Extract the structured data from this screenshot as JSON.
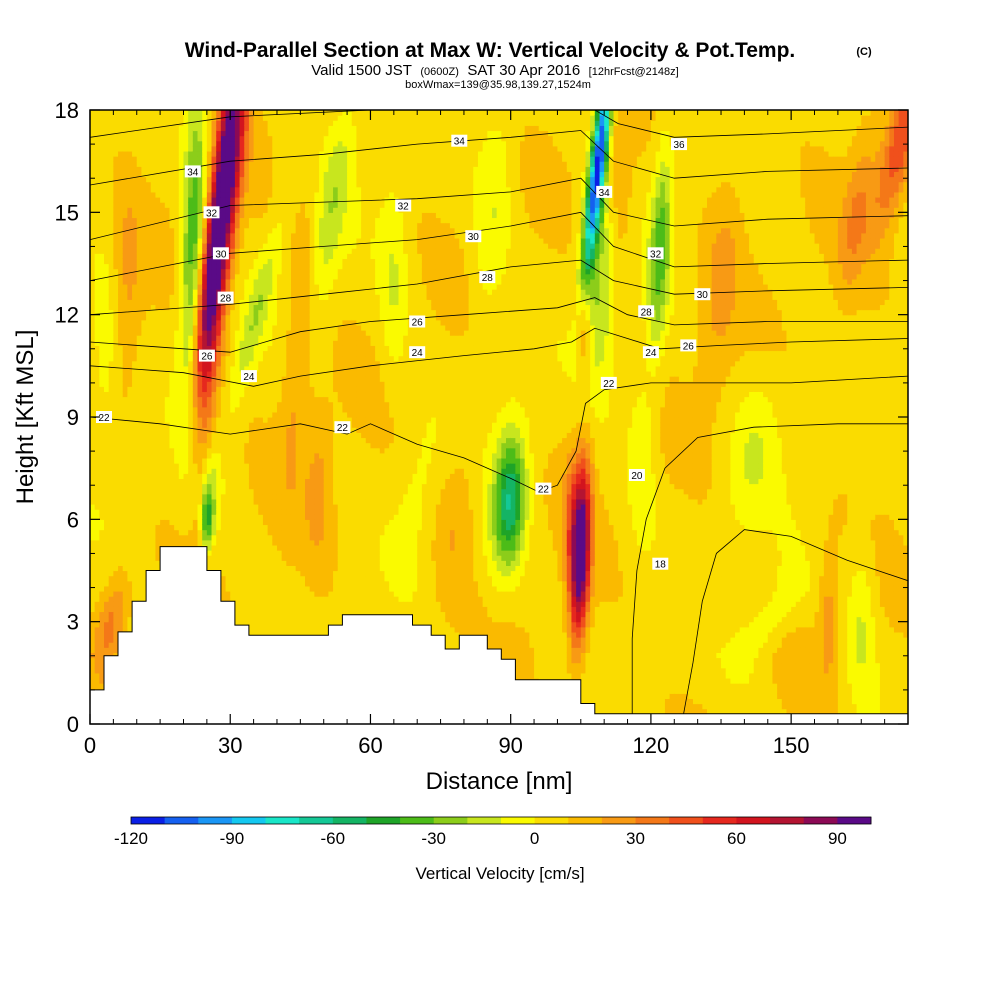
{
  "chart_data": {
    "type": "heatmap",
    "title": "Wind-Parallel Section at Max W: Vertical Velocity & Pot.Temp.",
    "title_mark": "(C)",
    "subtitle": {
      "part1": "Valid 1500 JST",
      "part2": "(0600Z)",
      "part3": "SAT 30 Apr 2016",
      "part4": "[12hrFcst@2148z]"
    },
    "subtitle2": "boxWmax=139@35.98,139.27,1524m",
    "xlabel": "Distance [nm]",
    "ylabel": "Height [Kft MSL]",
    "xlim": [
      0,
      175
    ],
    "ylim": [
      0,
      18
    ],
    "x_ticks": [
      0,
      30,
      60,
      90,
      120,
      150
    ],
    "y_ticks": [
      0,
      3,
      6,
      9,
      12,
      15,
      18
    ],
    "colorbar": {
      "label": "Vertical Velocity [cm/s]",
      "min": -120,
      "max": 100,
      "step": 10,
      "tick_values": [
        -120,
        -90,
        -60,
        -30,
        0,
        30,
        60,
        90
      ],
      "tick_labels": [
        "-120",
        "-90",
        "-60",
        "-30",
        "0",
        "30",
        "60",
        "90"
      ],
      "colors": [
        "#0a1fe6",
        "#1560f0",
        "#1a96f5",
        "#14c8f0",
        "#19e6c8",
        "#14c896",
        "#14b464",
        "#1ea428",
        "#4cbc18",
        "#8ccd1a",
        "#c8e61e",
        "#fafa00",
        "#fadc00",
        "#faba00",
        "#f89a14",
        "#f47818",
        "#f0501c",
        "#e6281e",
        "#d2141e",
        "#b41432",
        "#8c0a55",
        "#5a0a87"
      ]
    },
    "terrain_kft": [
      [
        0,
        1.0
      ],
      [
        3,
        1.0
      ],
      [
        3,
        2.0
      ],
      [
        6,
        2.0
      ],
      [
        6,
        2.7
      ],
      [
        9,
        2.7
      ],
      [
        9,
        3.6
      ],
      [
        12,
        3.6
      ],
      [
        12,
        4.5
      ],
      [
        15,
        4.5
      ],
      [
        15,
        5.2
      ],
      [
        25,
        5.2
      ],
      [
        25,
        4.5
      ],
      [
        28,
        4.5
      ],
      [
        28,
        3.6
      ],
      [
        31,
        3.6
      ],
      [
        31,
        2.9
      ],
      [
        34,
        2.9
      ],
      [
        34,
        2.6
      ],
      [
        51,
        2.6
      ],
      [
        51,
        2.9
      ],
      [
        54,
        2.9
      ],
      [
        54,
        3.2
      ],
      [
        69,
        3.2
      ],
      [
        69,
        2.9
      ],
      [
        73,
        2.9
      ],
      [
        73,
        2.6
      ],
      [
        76,
        2.6
      ],
      [
        76,
        2.2
      ],
      [
        79,
        2.2
      ],
      [
        79,
        2.6
      ],
      [
        85,
        2.6
      ],
      [
        85,
        2.2
      ],
      [
        88,
        2.2
      ],
      [
        88,
        1.9
      ],
      [
        91,
        1.9
      ],
      [
        91,
        1.3
      ],
      [
        105,
        1.3
      ],
      [
        105,
        0.6
      ],
      [
        108,
        0.6
      ],
      [
        108,
        0.3
      ],
      [
        175,
        0.3
      ]
    ],
    "features": [
      {
        "x": 29,
        "x0": 24,
        "x1": 31,
        "w": 3.0,
        "y": 14.5,
        "y0": 10,
        "y1": 18,
        "h": 5.5,
        "v": 95
      },
      {
        "x": 28,
        "x0": 25,
        "x1": 30,
        "w": 2.0,
        "y": 15.5,
        "y0": 12,
        "y1": 18,
        "h": 4.0,
        "v": 35
      },
      {
        "x": 22,
        "x0": 21,
        "x1": 23,
        "w": 2.5,
        "y": 14.0,
        "y0": 10,
        "y1": 18,
        "h": 5.0,
        "v": -45
      },
      {
        "x": 25,
        "x0": 25,
        "x1": 25,
        "w": 1.3,
        "y": 6.0,
        "y0": 5.5,
        "y1": 6.5,
        "h": 0.9,
        "v": -50
      },
      {
        "x": 26,
        "x0": 26,
        "x1": 26,
        "w": 2.0,
        "y": 7.0,
        "y0": 6.0,
        "y1": 8.0,
        "h": 1.5,
        "v": -25
      },
      {
        "x": 36,
        "x0": 30,
        "x1": 41,
        "w": 2.5,
        "y": 12,
        "y0": 9,
        "y1": 15,
        "h": 3.0,
        "v": -22
      },
      {
        "x": 52,
        "x0": 48,
        "x1": 55,
        "w": 3.5,
        "y": 15,
        "y0": 12,
        "y1": 18,
        "h": 3.5,
        "v": -22
      },
      {
        "x": 45,
        "x0": 43,
        "x1": 47,
        "w": 3.0,
        "y": 11,
        "y0": 8,
        "y1": 15,
        "h": 4.0,
        "v": 18
      },
      {
        "x": 49,
        "x0": 49,
        "x1": 49,
        "w": 3.0,
        "y": 7,
        "y0": 4,
        "y1": 9,
        "h": 2.5,
        "v": 15
      },
      {
        "x": 86,
        "x0": 84,
        "x1": 88,
        "w": 4.0,
        "y": 15,
        "y0": 11,
        "y1": 18,
        "h": 3.5,
        "v": -16
      },
      {
        "x": 90,
        "x0": 90,
        "x1": 90,
        "w": 3.0,
        "y": 6.5,
        "y0": 5.5,
        "y1": 7.5,
        "h": 1.8,
        "v": -40
      },
      {
        "x": 89,
        "x0": 87,
        "x1": 91,
        "w": 4.0,
        "y": 6.5,
        "y0": 4,
        "y1": 8.5,
        "h": 2.5,
        "v": -25
      },
      {
        "x": 78,
        "x0": 76,
        "x1": 80,
        "w": 4.0,
        "y": 6,
        "y0": 3.5,
        "y1": 8,
        "h": 2.5,
        "v": 12
      },
      {
        "x": 103,
        "x0": 103,
        "x1": 103,
        "w": 2.0,
        "y": 6,
        "y0": 2,
        "y1": 9.5,
        "h": 2.0,
        "v": 22
      },
      {
        "x": 107,
        "x0": 104,
        "x1": 106,
        "w": 2.0,
        "y": 5,
        "y0": 1,
        "y1": 9.5,
        "h": 2.5,
        "v": 100
      },
      {
        "x": 106,
        "x0": 106,
        "x1": 106,
        "w": 1.5,
        "y": 11.5,
        "y0": 10.5,
        "y1": 12.5,
        "h": 1.3,
        "v": 30
      },
      {
        "x": 109,
        "x0": 106,
        "x1": 110,
        "w": 1.7,
        "y": 16.5,
        "y0": 13,
        "y1": 18,
        "h": 3.2,
        "v": -120
      },
      {
        "x": 110,
        "x0": 109,
        "x1": 110,
        "w": 4.0,
        "y": 13,
        "y0": 11,
        "y1": 15,
        "h": 3.0,
        "v": -30
      },
      {
        "x": 113,
        "x0": 113,
        "x1": 113,
        "w": 3.0,
        "y": 15,
        "y0": 12,
        "y1": 18,
        "h": 3.0,
        "v": 20
      },
      {
        "x": 121,
        "x0": 121,
        "x1": 123,
        "w": 2.2,
        "y": 14,
        "y0": 11,
        "y1": 17,
        "h": 3.0,
        "v": -40
      },
      {
        "x": 118,
        "x0": 118,
        "x1": 118,
        "w": 3.0,
        "y": 8,
        "y0": 6,
        "y1": 10,
        "h": 2.5,
        "v": -18
      },
      {
        "x": 135,
        "x0": 133,
        "x1": 137,
        "w": 4.0,
        "y": 13,
        "y0": 10,
        "y1": 16,
        "h": 3.5,
        "v": 15
      },
      {
        "x": 142,
        "x0": 140,
        "x1": 144,
        "w": 5.0,
        "y": 8,
        "y0": 6,
        "y1": 10,
        "h": 2.5,
        "v": -14
      },
      {
        "x": 145,
        "x0": 140,
        "x1": 150,
        "w": 5.0,
        "y": 3,
        "y0": 2,
        "y1": 4,
        "h": 1.8,
        "v": -16
      },
      {
        "x": 165,
        "x0": 165,
        "x1": 165,
        "w": 3.0,
        "y": 3,
        "y0": 1,
        "y1": 5,
        "h": 2.5,
        "v": -18
      },
      {
        "x": 158,
        "x0": 158,
        "x1": 158,
        "w": 2.0,
        "y": 3,
        "y0": 1,
        "y1": 5,
        "h": 2.0,
        "v": 18
      },
      {
        "x": 172,
        "x0": 168,
        "x1": 175,
        "w": 3.5,
        "y": 17,
        "y0": 14,
        "y1": 18,
        "h": 2.5,
        "v": 40
      },
      {
        "x": 164,
        "x0": 162,
        "x1": 166,
        "w": 3.0,
        "y": 15,
        "y0": 13,
        "y1": 17,
        "h": 2.5,
        "v": 20
      },
      {
        "x": 5,
        "x0": 3,
        "x1": 6,
        "w": 3.0,
        "y": 3,
        "y0": 2,
        "y1": 4,
        "h": 1.5,
        "v": 25
      },
      {
        "x": 3,
        "x0": 3,
        "x1": 3,
        "w": 3.0,
        "y": 11,
        "y0": 8,
        "y1": 14,
        "h": 3.0,
        "v": -14
      },
      {
        "x": 8,
        "x0": 8,
        "x1": 8,
        "w": 3.0,
        "y": 13,
        "y0": 10,
        "y1": 16,
        "h": 3.0,
        "v": 14
      },
      {
        "x": 65,
        "x0": 65,
        "x1": 65,
        "w": 3.0,
        "y": 13,
        "y0": 10,
        "y1": 16,
        "h": 3.0,
        "v": -16
      },
      {
        "x": 70,
        "x0": 68,
        "x1": 72,
        "w": 4.0,
        "y": 7,
        "y0": 5,
        "y1": 9,
        "h": 2.5,
        "v": -10
      }
    ],
    "theta_lines": [
      {
        "label": "18",
        "points": [
          [
            127,
            0.3
          ],
          [
            129,
            1.8
          ],
          [
            131,
            3.6
          ],
          [
            134,
            5.0
          ],
          [
            140,
            5.7
          ],
          [
            150,
            5.5
          ],
          [
            162,
            4.8
          ],
          [
            175,
            4.2
          ]
        ]
      },
      {
        "label": "20",
        "points": [
          [
            116,
            0.3
          ],
          [
            116,
            2.5
          ],
          [
            117,
            4.5
          ],
          [
            119,
            6.0
          ],
          [
            123,
            7.5
          ],
          [
            130,
            8.4
          ],
          [
            142,
            8.7
          ],
          [
            160,
            8.8
          ],
          [
            175,
            8.8
          ]
        ]
      },
      {
        "label": "22",
        "points": [
          [
            0,
            9.0
          ],
          [
            15,
            8.8
          ],
          [
            30,
            8.5
          ],
          [
            45,
            8.8
          ],
          [
            55,
            8.5
          ],
          [
            60,
            8.8
          ],
          [
            70,
            8.2
          ],
          [
            80,
            7.8
          ],
          [
            90,
            7.2
          ],
          [
            96,
            6.8
          ],
          [
            100,
            7.0
          ],
          [
            104,
            8.0
          ],
          [
            106,
            9.4
          ],
          [
            110,
            9.8
          ],
          [
            120,
            10.0
          ],
          [
            135,
            10.0
          ],
          [
            150,
            10.0
          ],
          [
            175,
            10.2
          ]
        ]
      },
      {
        "label": "24",
        "points": [
          [
            0,
            10.5
          ],
          [
            20,
            10.3
          ],
          [
            35,
            9.9
          ],
          [
            45,
            10.2
          ],
          [
            60,
            10.5
          ],
          [
            80,
            10.8
          ],
          [
            95,
            11.0
          ],
          [
            103,
            11.2
          ],
          [
            108,
            11.6
          ],
          [
            115,
            11.3
          ],
          [
            122,
            11.0
          ],
          [
            135,
            11.1
          ],
          [
            150,
            11.2
          ],
          [
            175,
            11.3
          ]
        ]
      },
      {
        "label": "26",
        "points": [
          [
            0,
            11.2
          ],
          [
            20,
            11.0
          ],
          [
            30,
            10.9
          ],
          [
            45,
            11.5
          ],
          [
            60,
            11.8
          ],
          [
            80,
            12.0
          ],
          [
            100,
            12.2
          ],
          [
            108,
            12.5
          ],
          [
            115,
            12.0
          ],
          [
            125,
            11.7
          ],
          [
            145,
            11.8
          ],
          [
            175,
            11.8
          ]
        ]
      },
      {
        "label": "28",
        "points": [
          [
            0,
            12.0
          ],
          [
            30,
            12.3
          ],
          [
            50,
            12.6
          ],
          [
            70,
            12.9
          ],
          [
            90,
            13.4
          ],
          [
            105,
            13.6
          ],
          [
            112,
            13.0
          ],
          [
            125,
            12.6
          ],
          [
            145,
            12.7
          ],
          [
            175,
            12.8
          ]
        ]
      },
      {
        "label": "30",
        "points": [
          [
            0,
            13.0
          ],
          [
            30,
            13.8
          ],
          [
            50,
            14.0
          ],
          [
            70,
            14.2
          ],
          [
            90,
            14.6
          ],
          [
            105,
            15.0
          ],
          [
            112,
            14.0
          ],
          [
            125,
            13.4
          ],
          [
            145,
            13.5
          ],
          [
            175,
            13.6
          ]
        ]
      },
      {
        "label": "32",
        "points": [
          [
            0,
            14.2
          ],
          [
            30,
            15.2
          ],
          [
            50,
            15.3
          ],
          [
            70,
            15.4
          ],
          [
            90,
            15.6
          ],
          [
            105,
            16.0
          ],
          [
            112,
            15.0
          ],
          [
            125,
            14.6
          ],
          [
            145,
            14.8
          ],
          [
            175,
            14.9
          ]
        ]
      },
      {
        "label": "34",
        "points": [
          [
            0,
            15.8
          ],
          [
            30,
            16.5
          ],
          [
            50,
            16.7
          ],
          [
            70,
            17.0
          ],
          [
            90,
            17.2
          ],
          [
            105,
            17.4
          ],
          [
            112,
            16.5
          ],
          [
            125,
            16.0
          ],
          [
            145,
            16.2
          ],
          [
            175,
            16.3
          ]
        ]
      },
      {
        "label": "36",
        "points": [
          [
            0,
            17.2
          ],
          [
            30,
            17.8
          ],
          [
            60,
            18.0
          ]
        ]
      },
      {
        "label": "36",
        "points": [
          [
            108,
            18.0
          ],
          [
            113,
            17.6
          ],
          [
            125,
            17.2
          ],
          [
            145,
            17.3
          ],
          [
            175,
            17.5
          ]
        ]
      }
    ],
    "theta_labels": [
      {
        "text": "22",
        "x": 3,
        "y": 9.0
      },
      {
        "text": "22",
        "x": 54,
        "y": 8.7
      },
      {
        "text": "22",
        "x": 97,
        "y": 6.9
      },
      {
        "text": "22",
        "x": 111,
        "y": 10.0
      },
      {
        "text": "20",
        "x": 117,
        "y": 7.3
      },
      {
        "text": "18",
        "x": 122,
        "y": 4.7
      },
      {
        "text": "24",
        "x": 34,
        "y": 10.2
      },
      {
        "text": "24",
        "x": 70,
        "y": 10.9
      },
      {
        "text": "24",
        "x": 120,
        "y": 10.9
      },
      {
        "text": "26",
        "x": 25,
        "y": 10.8
      },
      {
        "text": "26",
        "x": 70,
        "y": 11.8
      },
      {
        "text": "26",
        "x": 128,
        "y": 11.1
      },
      {
        "text": "28",
        "x": 29,
        "y": 12.5
      },
      {
        "text": "28",
        "x": 85,
        "y": 13.1
      },
      {
        "text": "28",
        "x": 119,
        "y": 12.1
      },
      {
        "text": "30",
        "x": 28,
        "y": 13.8
      },
      {
        "text": "30",
        "x": 82,
        "y": 14.3
      },
      {
        "text": "30",
        "x": 131,
        "y": 12.6
      },
      {
        "text": "32",
        "x": 26,
        "y": 15.0
      },
      {
        "text": "32",
        "x": 67,
        "y": 15.2
      },
      {
        "text": "32",
        "x": 121,
        "y": 13.8
      },
      {
        "text": "34",
        "x": 22,
        "y": 16.2
      },
      {
        "text": "34",
        "x": 79,
        "y": 17.1
      },
      {
        "text": "34",
        "x": 110,
        "y": 15.6
      },
      {
        "text": "36",
        "x": 126,
        "y": 17.0
      }
    ]
  }
}
